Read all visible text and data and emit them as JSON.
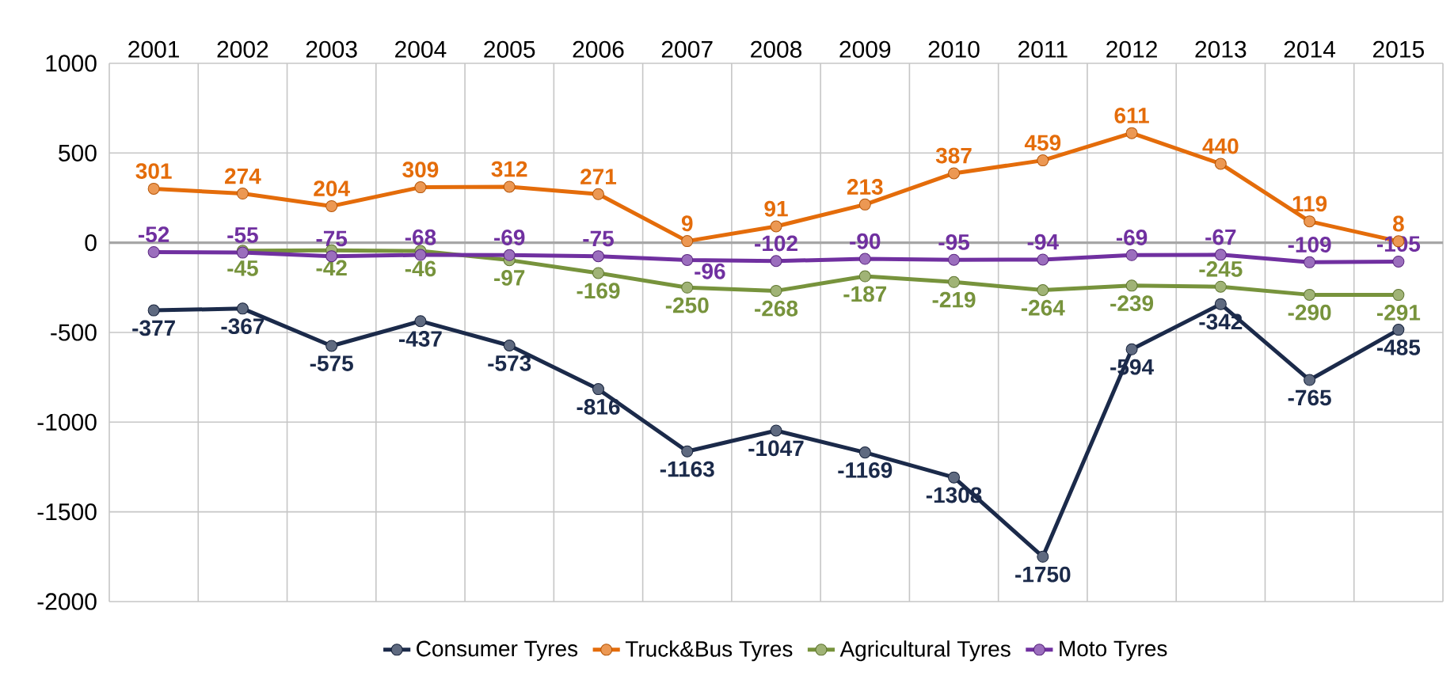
{
  "chart_data": {
    "type": "line",
    "categories": [
      "2001",
      "2002",
      "2003",
      "2004",
      "2005",
      "2006",
      "2007",
      "2008",
      "2009",
      "2010",
      "2011",
      "2012",
      "2013",
      "2014",
      "2015"
    ],
    "series": [
      {
        "name": "Consumer Tyres",
        "color": "#1b2a4a",
        "values": [
          -377,
          -367,
          -575,
          -437,
          -573,
          -816,
          -1163,
          -1047,
          -1169,
          -1308,
          -1750,
          -594,
          -342,
          -765,
          -485
        ]
      },
      {
        "name": "Truck&Bus Tyres",
        "color": "#e46c0a",
        "values": [
          301,
          274,
          204,
          309,
          312,
          271,
          9,
          91,
          213,
          387,
          459,
          611,
          440,
          119,
          8
        ]
      },
      {
        "name": "Agricultural Tyres",
        "color": "#77933c",
        "values": [
          null,
          -45,
          -42,
          -46,
          -97,
          -169,
          -250,
          -268,
          -187,
          -219,
          -264,
          -239,
          -245,
          -290,
          -291
        ]
      },
      {
        "name": "Moto Tyres",
        "color": "#7030a0",
        "values": [
          -52,
          -55,
          -75,
          -68,
          -69,
          -75,
          -96,
          -102,
          -90,
          -95,
          -94,
          -69,
          -67,
          -109,
          -105
        ]
      }
    ],
    "ylim": [
      -2000,
      1000
    ],
    "yticks": [
      -2000,
      -1500,
      -1000,
      -500,
      0,
      500,
      1000
    ],
    "grid": true,
    "legend": "bottom",
    "marker": "circle",
    "line_style": "solid",
    "data_labels": true
  }
}
